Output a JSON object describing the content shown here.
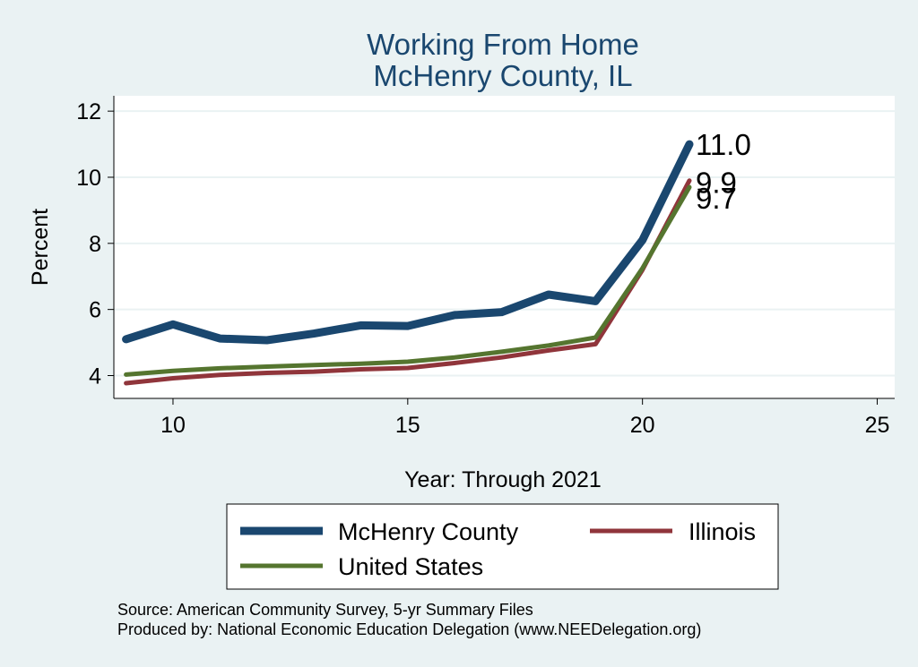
{
  "chart_data": {
    "type": "line",
    "title": [
      "Working From Home",
      "McHenry County, IL"
    ],
    "xlabel": "Year: Through 2021",
    "ylabel": "Percent",
    "xlim": [
      8.8,
      25
    ],
    "ylim": [
      3.4,
      12.4
    ],
    "xticks": [
      10,
      15,
      20,
      25
    ],
    "yticks": [
      4,
      6,
      8,
      10,
      12
    ],
    "grid": true,
    "series": [
      {
        "name": "McHenry County",
        "color": "#1a476f",
        "x": [
          9,
          10,
          11,
          12,
          13,
          14,
          15,
          16,
          17,
          18,
          19,
          20,
          21
        ],
        "values": [
          5.1,
          5.55,
          5.12,
          5.07,
          5.27,
          5.52,
          5.5,
          5.83,
          5.92,
          6.45,
          6.25,
          8.1,
          11.0
        ],
        "end_label": "11.0"
      },
      {
        "name": "Illinois",
        "color": "#90353b",
        "x": [
          9,
          10,
          11,
          12,
          13,
          14,
          15,
          16,
          17,
          18,
          19,
          20,
          21
        ],
        "values": [
          3.77,
          3.92,
          4.02,
          4.08,
          4.12,
          4.19,
          4.23,
          4.38,
          4.55,
          4.76,
          4.95,
          7.2,
          9.9
        ],
        "end_label": "9.9"
      },
      {
        "name": "United States",
        "color": "#55752f",
        "x": [
          9,
          10,
          11,
          12,
          13,
          14,
          15,
          16,
          17,
          18,
          19,
          20,
          21
        ],
        "values": [
          4.03,
          4.14,
          4.22,
          4.27,
          4.32,
          4.36,
          4.42,
          4.55,
          4.72,
          4.91,
          5.15,
          7.25,
          9.7
        ],
        "end_label": "9.7"
      }
    ],
    "legend": {
      "placement": "bottom",
      "entries": [
        "McHenry County",
        "Illinois",
        "United States"
      ]
    }
  },
  "notes": [
    "Source: American Community Survey, 5-yr Summary Files",
    "Produced by: National Economic Education Delegation (www.NEEDelegation.org)"
  ]
}
